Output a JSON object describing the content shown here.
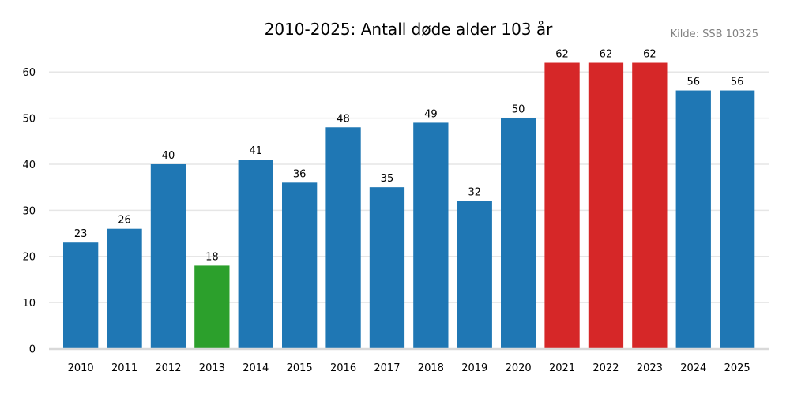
{
  "chart_data": {
    "type": "bar",
    "title": "2010-2025: Antall døde alder 103 år",
    "source_note": "Kilde: SSB 10325",
    "xlabel": "",
    "ylabel": "",
    "categories": [
      "2010",
      "2011",
      "2012",
      "2013",
      "2014",
      "2015",
      "2016",
      "2017",
      "2018",
      "2019",
      "2020",
      "2021",
      "2022",
      "2023",
      "2024",
      "2025"
    ],
    "values": [
      23,
      26,
      40,
      18,
      41,
      36,
      48,
      35,
      49,
      32,
      50,
      62,
      62,
      62,
      56,
      56
    ],
    "bar_colors": [
      "#1f77b4",
      "#1f77b4",
      "#1f77b4",
      "#2ca02c",
      "#1f77b4",
      "#1f77b4",
      "#1f77b4",
      "#1f77b4",
      "#1f77b4",
      "#1f77b4",
      "#1f77b4",
      "#d62728",
      "#d62728",
      "#d62728",
      "#1f77b4",
      "#1f77b4"
    ],
    "ylim": [
      0,
      65
    ],
    "yticks": [
      0,
      10,
      20,
      30,
      40,
      50,
      60
    ],
    "grid": "horizontal",
    "data_labels": true,
    "colors": {
      "default": "#1f77b4",
      "min": "#2ca02c",
      "max": "#d62728",
      "grid": "#e6e6e6",
      "axis": "#d9d9d9",
      "source": "#808080"
    }
  }
}
